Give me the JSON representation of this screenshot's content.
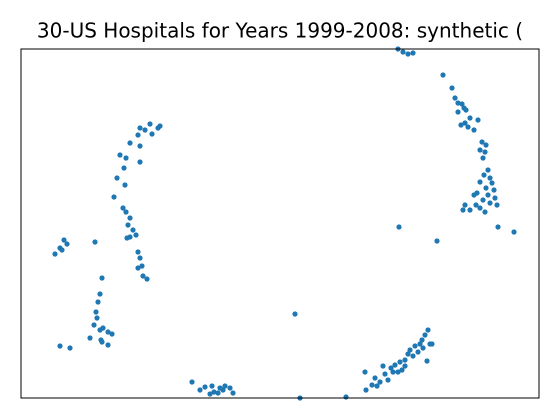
{
  "chart_data": {
    "type": "scatter",
    "title": "30-US Hospitals for Years 1999-2008: synthetic (",
    "color": "#1f77b4",
    "xlim": [
      0,
      518
    ],
    "ylim": [
      0,
      349
    ],
    "x": [
      119,
      124,
      129,
      137,
      139,
      131,
      117,
      109,
      119,
      99,
      105,
      119,
      103,
      96,
      104,
      93,
      102,
      105,
      109,
      107,
      112,
      109,
      106,
      115,
      117,
      119,
      117,
      121,
      122,
      126,
      34,
      39,
      43,
      46,
      41,
      74,
      81,
      79,
      77,
      75,
      76,
      73,
      79,
      82,
      87,
      91,
      80,
      69,
      87,
      39,
      49,
      81,
      171,
      179,
      184,
      191,
      193,
      199,
      202,
      204,
      209,
      212,
      197,
      189,
      279,
      325,
      274,
      344,
      345,
      351,
      354,
      356,
      359,
      362,
      364,
      367,
      370,
      372,
      374,
      377,
      379,
      381,
      384,
      387,
      389,
      392,
      394,
      397,
      399,
      401,
      404,
      407,
      409,
      411,
      406,
      402,
      384,
      377,
      382,
      387,
      392,
      422,
      431,
      434,
      437,
      441,
      443,
      445,
      437,
      449,
      444,
      457,
      440,
      447,
      453,
      461,
      465,
      459,
      464,
      462,
      467,
      463,
      469,
      459,
      471,
      465,
      473,
      456,
      467,
      474,
      453,
      462,
      469,
      476,
      444,
      449,
      455,
      459,
      464,
      442,
      477,
      493,
      416,
      378
    ],
    "values": [
      270,
      268,
      274,
      270,
      272,
      264,
      263,
      255,
      252,
      243,
      240,
      236,
      230,
      220,
      213,
      201,
      190,
      186,
      180,
      173,
      168,
      161,
      160,
      163,
      146,
      140,
      130,
      132,
      122,
      119,
      144,
      150,
      158,
      154,
      148,
      156,
      120,
      104,
      96,
      86,
      80,
      73,
      68,
      70,
      66,
      64,
      58,
      60,
      53,
      52,
      50,
      56,
      16,
      8,
      11,
      12,
      6,
      10,
      8,
      12,
      10,
      5,
      5,
      4,
      0,
      1,
      84,
      26,
      8,
      13,
      20,
      12,
      16,
      32,
      24,
      18,
      30,
      26,
      33,
      26,
      36,
      28,
      38,
      44,
      48,
      42,
      52,
      46,
      54,
      58,
      63,
      68,
      54,
      54,
      37,
      50,
      32,
      349,
      346,
      344,
      345,
      323,
      310,
      300,
      295,
      294,
      290,
      288,
      286,
      280,
      275,
      278,
      273,
      271,
      268,
      256,
      253,
      248,
      246,
      240,
      228,
      223,
      220,
      216,
      215,
      210,
      208,
      205,
      203,
      200,
      203,
      198,
      195,
      193,
      193,
      188,
      193,
      190,
      186,
      188,
      171,
      166,
      157,
      171
    ]
  }
}
